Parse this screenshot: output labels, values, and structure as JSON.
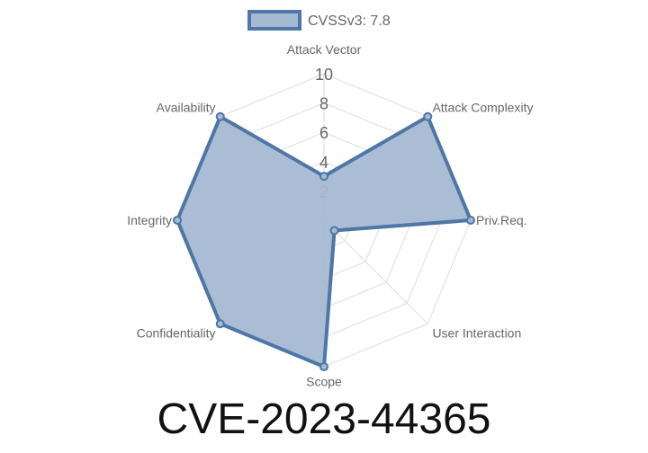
{
  "chart_data": {
    "type": "radar",
    "title": "CVE-2023-44365",
    "categories": [
      "Attack Vector",
      "Attack Complexity",
      "Priv.Req.",
      "User Interaction",
      "Scope",
      "Confidentiality",
      "Integrity",
      "Availability"
    ],
    "series": [
      {
        "name": "CVSSv3: 7.8",
        "values": [
          3,
          10,
          10,
          1,
          10,
          10,
          10,
          10
        ]
      }
    ],
    "rlim": [
      0,
      10
    ],
    "ticks": [
      "2",
      "4",
      "6",
      "8",
      "10"
    ],
    "tick_values": [
      2,
      4,
      6,
      8,
      10
    ],
    "grid": true,
    "legend": "top",
    "colors": {
      "line": "#4e76a6",
      "fill": "#a5b9d3",
      "grid": "#dddddd"
    }
  }
}
